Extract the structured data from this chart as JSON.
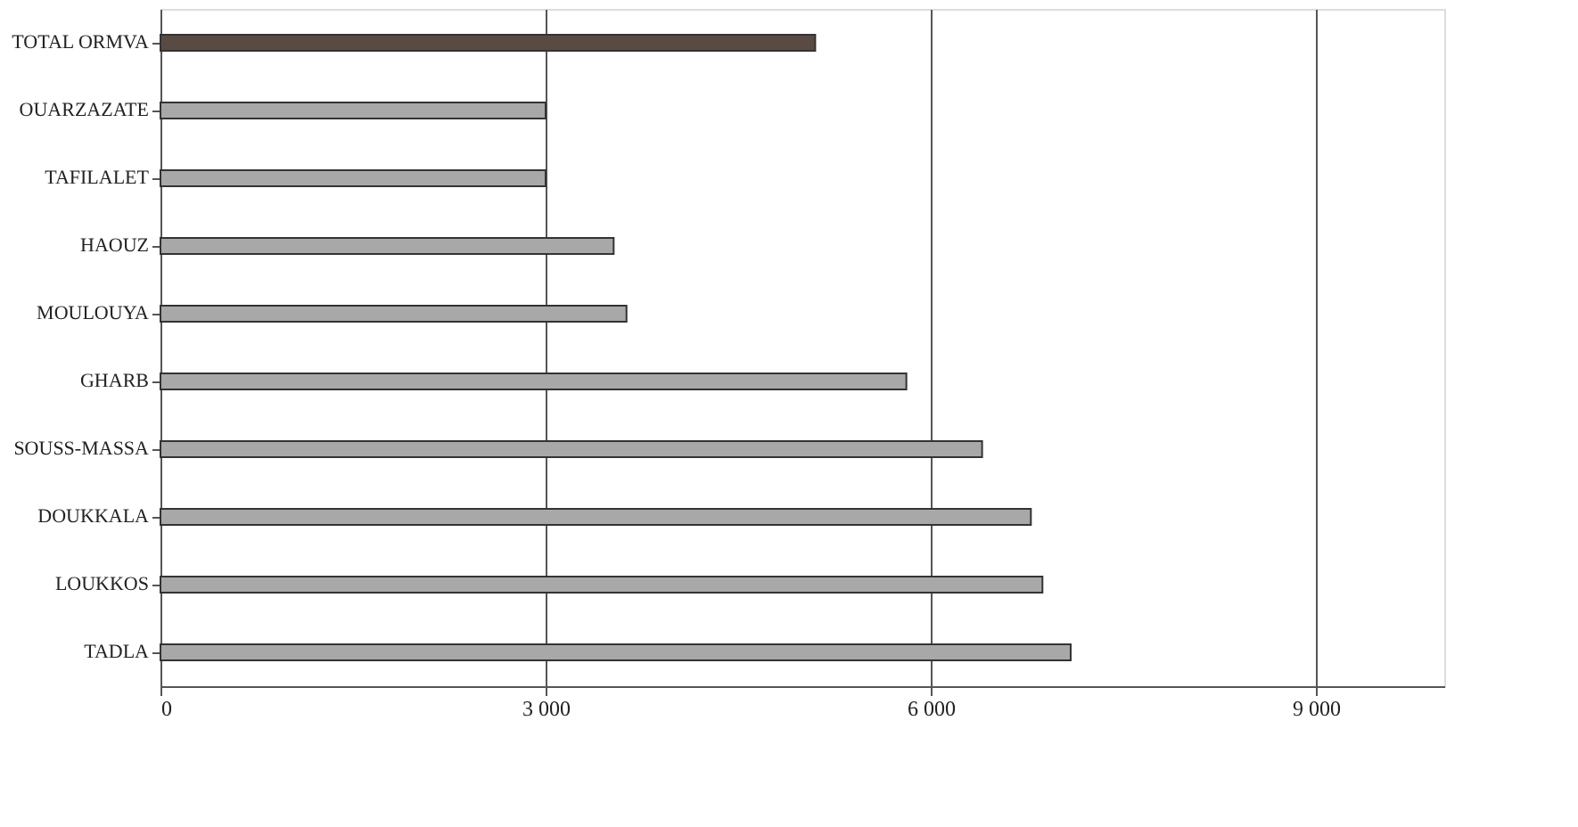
{
  "chart_data": {
    "type": "bar",
    "orientation": "horizontal",
    "categories": [
      "TOTAL ORMVA",
      "OUARZAZATE",
      "TAFILALET",
      "HAOUZ",
      "MOULOUYA",
      "GHARB",
      "SOUSS-MASSA",
      "DOUKKALA",
      "LOUKKOS",
      "TADLA"
    ],
    "values": [
      5100,
      3000,
      3000,
      3530,
      3630,
      5810,
      6400,
      6780,
      6870,
      7090
    ],
    "colors": [
      "#5a4a44",
      "#a8a8a8",
      "#a8a8a8",
      "#a8a8a8",
      "#a8a8a8",
      "#a8a8a8",
      "#a8a8a8",
      "#a8a8a8",
      "#a8a8a8",
      "#a8a8a8"
    ],
    "xlim": [
      0,
      10000
    ],
    "xticks": [
      0,
      {
        "value": 3000,
        "label": "3 000"
      },
      {
        "value": 6000,
        "label": "6 000"
      },
      {
        "value": 9000,
        "label": "9 000"
      }
    ],
    "grid": "x"
  }
}
